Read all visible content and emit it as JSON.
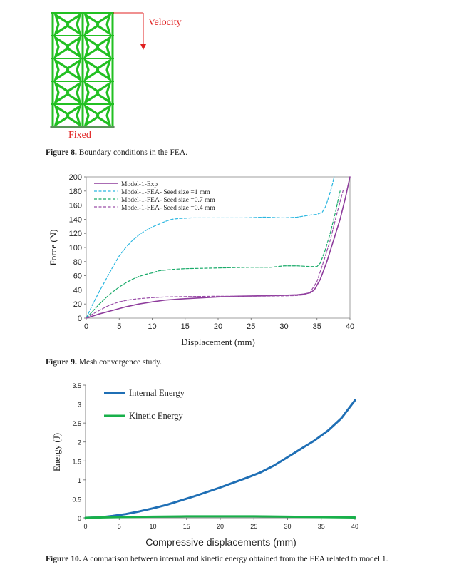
{
  "figure8": {
    "velocity_label": "Velocity",
    "fixed_label": "Fixed",
    "caption_label": "Figure 8.",
    "caption_text": " Boundary conditions in the FEA.",
    "colors": {
      "lattice": "#22c022",
      "annotation": "#e02020"
    }
  },
  "figure9": {
    "caption_label": "Figure 9.",
    "caption_text": " Mesh convergence study."
  },
  "figure10": {
    "caption_label": "Figure 10.",
    "caption_text": "  A comparison between internal and kinetic energy obtained from the FEA related to model 1."
  },
  "chart_data": [
    {
      "id": "fig9",
      "type": "line",
      "title": "",
      "xlabel": "Displacement (mm)",
      "ylabel": "Force (N)",
      "xlim": [
        0,
        40
      ],
      "ylim": [
        0,
        200
      ],
      "xticks": [
        0,
        5,
        10,
        15,
        20,
        25,
        30,
        35,
        40
      ],
      "yticks": [
        0,
        20,
        40,
        60,
        80,
        100,
        120,
        140,
        160,
        180,
        200
      ],
      "grid": false,
      "legend_position": "top-left",
      "series": [
        {
          "name": "Model-1-Exp",
          "color": "#8e3c9c",
          "style": "solid",
          "points": [
            [
              0,
              0
            ],
            [
              2,
              6
            ],
            [
              4,
              11
            ],
            [
              6,
              16
            ],
            [
              8,
              20
            ],
            [
              10,
              23
            ],
            [
              12,
              25.5
            ],
            [
              15,
              27.5
            ],
            [
              18,
              29
            ],
            [
              20,
              30
            ],
            [
              23,
              31
            ],
            [
              26,
              31.5
            ],
            [
              29,
              32
            ],
            [
              32,
              33
            ],
            [
              33,
              34
            ],
            [
              34,
              36
            ],
            [
              34.6,
              40
            ],
            [
              35.5,
              55
            ],
            [
              36.5,
              80
            ],
            [
              37.5,
              110
            ],
            [
              38.5,
              140
            ],
            [
              39.3,
              170
            ],
            [
              40,
              200
            ]
          ]
        },
        {
          "name": "Model-1-FEA- Seed size =1 mm",
          "color": "#29b6e0",
          "style": "dashed",
          "points": [
            [
              0,
              0
            ],
            [
              1,
              20
            ],
            [
              2,
              38
            ],
            [
              3,
              55
            ],
            [
              4,
              72
            ],
            [
              5,
              88
            ],
            [
              6,
              100
            ],
            [
              7,
              110
            ],
            [
              8,
              118
            ],
            [
              9,
              124
            ],
            [
              10,
              129
            ],
            [
              11,
              133
            ],
            [
              12,
              137
            ],
            [
              13,
              140
            ],
            [
              14,
              141
            ],
            [
              16,
              142
            ],
            [
              20,
              142
            ],
            [
              24,
              142
            ],
            [
              27,
              143
            ],
            [
              30,
              142
            ],
            [
              32,
              143
            ],
            [
              34,
              146
            ],
            [
              35,
              147
            ],
            [
              35.8,
              150
            ],
            [
              36.3,
              158
            ],
            [
              36.8,
              172
            ],
            [
              37.3,
              188
            ],
            [
              37.6,
              200
            ]
          ]
        },
        {
          "name": "Model-1-FEA- Seed size =0.7 mm",
          "color": "#1aab6a",
          "style": "dashed",
          "points": [
            [
              0,
              0
            ],
            [
              1,
              10
            ],
            [
              2,
              20
            ],
            [
              3,
              29
            ],
            [
              4,
              37
            ],
            [
              5,
              44
            ],
            [
              6,
              50
            ],
            [
              7,
              55
            ],
            [
              8,
              59
            ],
            [
              9,
              62
            ],
            [
              10,
              64
            ],
            [
              11,
              67
            ],
            [
              12,
              68
            ],
            [
              13,
              69
            ],
            [
              15,
              70
            ],
            [
              20,
              71
            ],
            [
              25,
              72
            ],
            [
              28,
              72
            ],
            [
              30,
              74
            ],
            [
              32,
              74
            ],
            [
              34,
              73
            ],
            [
              35,
              73
            ],
            [
              35.5,
              78
            ],
            [
              36.2,
              95
            ],
            [
              37,
              120
            ],
            [
              37.8,
              150
            ],
            [
              38.5,
              180
            ]
          ]
        },
        {
          "name": "Model-1-FEA- Seed size =0.4 mm",
          "color": "#9a4da8",
          "style": "dashed",
          "points": [
            [
              0,
              0
            ],
            [
              1,
              6
            ],
            [
              2,
              11
            ],
            [
              3,
              16
            ],
            [
              4,
              20
            ],
            [
              5,
              23
            ],
            [
              6,
              25
            ],
            [
              7,
              26.5
            ],
            [
              8,
              27.5
            ],
            [
              10,
              29
            ],
            [
              12,
              30
            ],
            [
              15,
              30.5
            ],
            [
              20,
              31
            ],
            [
              25,
              31
            ],
            [
              30,
              31.5
            ],
            [
              32,
              32
            ],
            [
              33,
              33
            ],
            [
              34,
              37
            ],
            [
              35,
              52
            ],
            [
              36,
              80
            ],
            [
              37,
              110
            ],
            [
              37.8,
              140
            ],
            [
              38.5,
              165
            ],
            [
              39,
              182
            ]
          ]
        }
      ]
    },
    {
      "id": "fig10",
      "type": "line",
      "title": "",
      "xlabel": "Compressive displacements (mm)",
      "ylabel": "Energy (J)",
      "xlim": [
        0,
        40
      ],
      "ylim": [
        0,
        3.5
      ],
      "xticks": [
        0,
        5,
        10,
        15,
        20,
        25,
        30,
        35,
        40
      ],
      "yticks": [
        0,
        0.5,
        1,
        1.5,
        2,
        2.5,
        3,
        3.5
      ],
      "ytick_labels": [
        "0",
        "0.5",
        "1",
        "1.5",
        "2",
        "2.5",
        "3",
        "3.5"
      ],
      "grid": false,
      "legend_position": "top-left",
      "series": [
        {
          "name": "Internal Energy",
          "color": "#1f6fb5",
          "style": "solid",
          "points": [
            [
              0,
              0
            ],
            [
              2,
              0.01
            ],
            [
              4,
              0.05
            ],
            [
              6,
              0.1
            ],
            [
              8,
              0.17
            ],
            [
              10,
              0.25
            ],
            [
              12,
              0.34
            ],
            [
              14,
              0.45
            ],
            [
              16,
              0.56
            ],
            [
              18,
              0.68
            ],
            [
              20,
              0.8
            ],
            [
              22,
              0.93
            ],
            [
              24,
              1.06
            ],
            [
              26,
              1.2
            ],
            [
              28,
              1.38
            ],
            [
              30,
              1.6
            ],
            [
              32,
              1.82
            ],
            [
              34,
              2.04
            ],
            [
              36,
              2.3
            ],
            [
              38,
              2.63
            ],
            [
              40,
              3.1
            ]
          ]
        },
        {
          "name": "Kinetic Energy",
          "color": "#18b04a",
          "style": "solid",
          "points": [
            [
              0,
              0
            ],
            [
              2,
              0.01
            ],
            [
              5,
              0.02
            ],
            [
              10,
              0.03
            ],
            [
              15,
              0.04
            ],
            [
              20,
              0.04
            ],
            [
              25,
              0.04
            ],
            [
              30,
              0.03
            ],
            [
              35,
              0.02
            ],
            [
              40,
              0.01
            ]
          ]
        }
      ]
    }
  ]
}
